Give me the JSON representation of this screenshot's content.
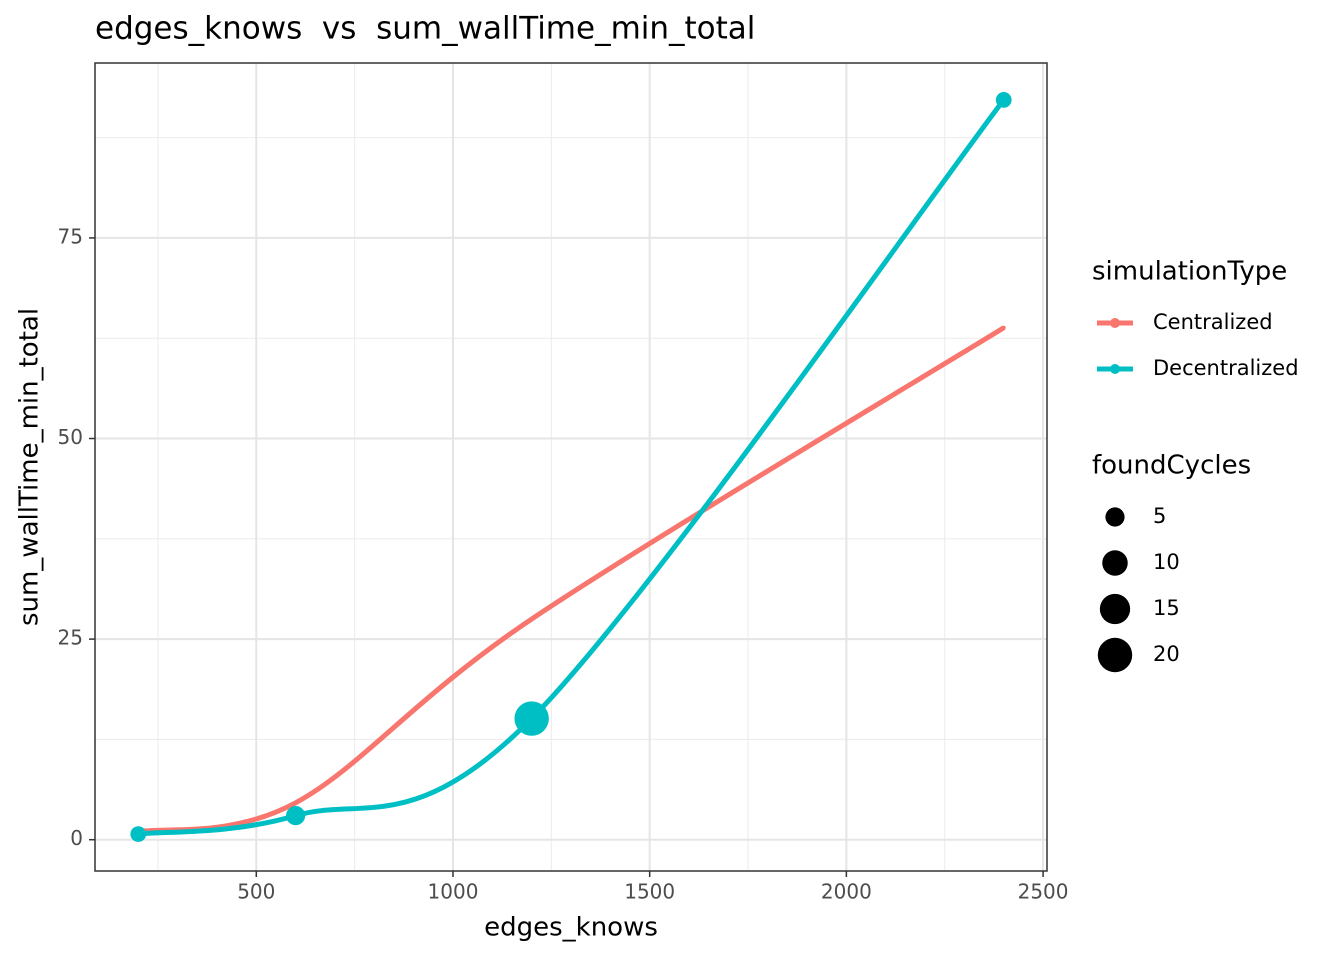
{
  "chart_data": {
    "type": "line",
    "title": "edges_knows  vs  sum_wallTime_min_total",
    "x_label": "edges_knows",
    "y_label": "sum_wallTime_min_total",
    "x": [
      200,
      600,
      1200,
      2400
    ],
    "series": [
      {
        "name": "Centralized",
        "color": "#F8766D",
        "values": [
          1.0,
          4.6,
          27.5,
          63.8
        ],
        "sizes": [
          0,
          0,
          0,
          0
        ]
      },
      {
        "name": "Decentralized",
        "color": "#00BFC4",
        "values": [
          0.7,
          3.0,
          15.1,
          92.2
        ],
        "sizes": [
          3,
          5,
          20,
          3
        ]
      }
    ],
    "xlim": [
      90,
      2510
    ],
    "ylim": [
      -3.9,
      96.8
    ],
    "xticks": [
      500,
      1000,
      1500,
      2000,
      2500
    ],
    "yticks": [
      0,
      25,
      50,
      75
    ],
    "grid": true,
    "color_legend_title": "simulationType",
    "size_legend_title": "foundCycles",
    "size_legend": [
      5,
      10,
      15,
      20
    ]
  }
}
